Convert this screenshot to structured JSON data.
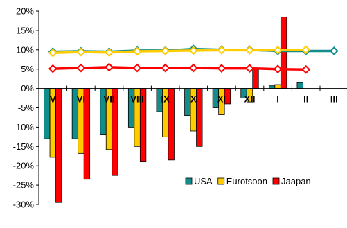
{
  "chart_data": {
    "type": "bar",
    "categories": [
      "V",
      "VI",
      "VII",
      "VIII",
      "IX",
      "X",
      "XI",
      "XII",
      "I",
      "II",
      "III"
    ],
    "y_ticks": [
      "20%",
      "15%",
      "10%",
      "5%",
      "0%",
      "-5%",
      "-10%",
      "-15%",
      "-20%",
      "-25%",
      "-30%"
    ],
    "ylim": [
      -30,
      20
    ],
    "y_unit": "%",
    "grid": false,
    "legend_position": "bottom-right",
    "series": [
      {
        "name": "USA",
        "color": "#138C8C",
        "bar_values": [
          -13,
          -13,
          -12,
          -10,
          -6,
          -7,
          -5,
          -2.5,
          0.7,
          1.5,
          null
        ],
        "line_values": [
          9.5,
          9.6,
          9.5,
          9.8,
          9.8,
          10.2,
          10.0,
          10.0,
          9.7,
          9.7,
          9.7
        ]
      },
      {
        "name": "Eurotsoon",
        "color": "#FFCC00",
        "bar_values": [
          -17.8,
          -16.8,
          -15.8,
          -15,
          -12.5,
          -11,
          -6.8,
          -3.5,
          1,
          null,
          null
        ],
        "line_values": [
          9.2,
          9.4,
          9.3,
          9.6,
          9.7,
          9.8,
          9.9,
          9.9,
          9.9,
          10.0,
          null
        ]
      },
      {
        "name": "Jaapan",
        "color": "#FF0000",
        "bar_values": [
          -29.5,
          -23.5,
          -22.5,
          -19,
          -18.5,
          -15,
          -4,
          5,
          18.5,
          null,
          null
        ],
        "line_values": [
          5.1,
          5.3,
          5.5,
          5.3,
          5.3,
          5.3,
          5.2,
          5.2,
          5.0,
          4.9,
          null
        ]
      }
    ]
  }
}
